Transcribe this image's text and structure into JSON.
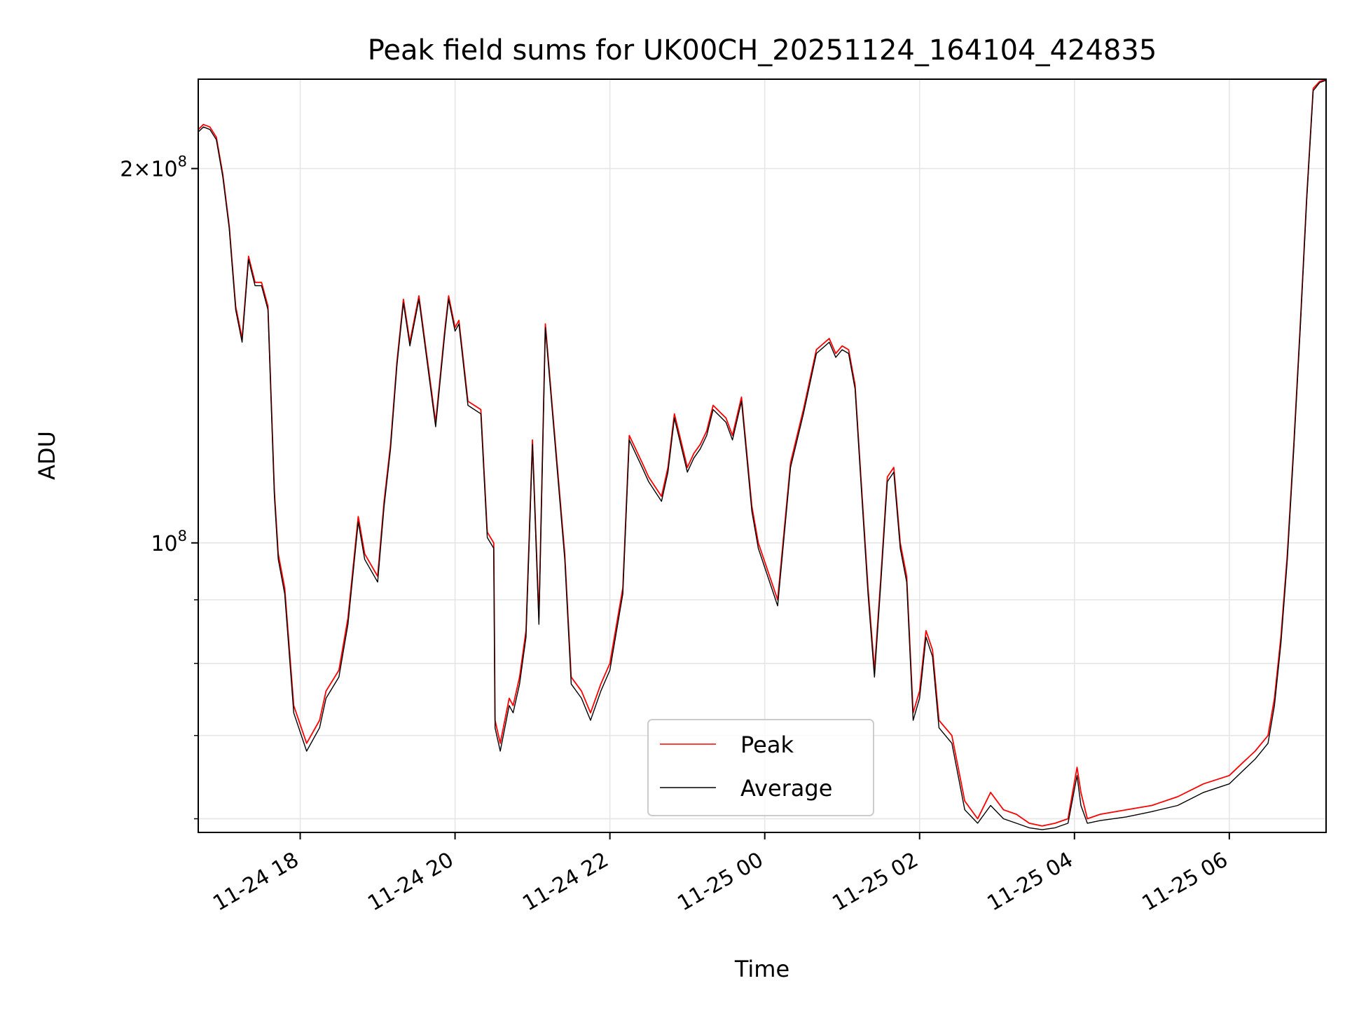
{
  "chart_data": {
    "type": "line",
    "title": "Peak field sums for UK00CH_20251124_164104_424835",
    "xlabel": "Time",
    "ylabel": "ADU",
    "y_scale": "log",
    "x_range": [
      "2025-11-24 16:41",
      "2025-11-25 07:15"
    ],
    "ylim": [
      58500000,
      236000000
    ],
    "grid": true,
    "legend_position": "lower-center",
    "x_ticks": [
      {
        "value": "2025-11-24 18:00",
        "label": "11-24 18"
      },
      {
        "value": "2025-11-24 20:00",
        "label": "11-24 20"
      },
      {
        "value": "2025-11-24 22:00",
        "label": "11-24 22"
      },
      {
        "value": "2025-11-25 00:00",
        "label": "11-25 00"
      },
      {
        "value": "2025-11-25 02:00",
        "label": "11-25 02"
      },
      {
        "value": "2025-11-25 04:00",
        "label": "11-25 04"
      },
      {
        "value": "2025-11-25 06:00",
        "label": "11-25 06"
      }
    ],
    "y_major_ticks": [
      {
        "value": 100000000,
        "label": "10^8"
      },
      {
        "value": 200000000,
        "label": "2×10^8"
      }
    ],
    "y_minor_ticks": [
      60000000,
      70000000,
      80000000,
      90000000
    ],
    "series": [
      {
        "name": "Peak",
        "color": "#ff0000",
        "x": [
          "2025-11-24 16:41",
          "2025-11-24 16:45",
          "2025-11-24 16:50",
          "2025-11-24 16:55",
          "2025-11-24 17:00",
          "2025-11-24 17:05",
          "2025-11-24 17:10",
          "2025-11-24 17:15",
          "2025-11-24 17:20",
          "2025-11-24 17:25",
          "2025-11-24 17:30",
          "2025-11-24 17:35",
          "2025-11-24 17:40",
          "2025-11-24 17:43",
          "2025-11-24 17:48",
          "2025-11-24 17:55",
          "2025-11-24 18:05",
          "2025-11-24 18:15",
          "2025-11-24 18:20",
          "2025-11-24 18:30",
          "2025-11-24 18:37",
          "2025-11-24 18:45",
          "2025-11-24 18:50",
          "2025-11-24 19:00",
          "2025-11-24 19:05",
          "2025-11-24 19:10",
          "2025-11-24 19:15",
          "2025-11-24 19:20",
          "2025-11-24 19:25",
          "2025-11-24 19:32",
          "2025-11-24 19:45",
          "2025-11-24 19:52",
          "2025-11-24 19:55",
          "2025-11-24 20:00",
          "2025-11-24 20:03",
          "2025-11-24 20:10",
          "2025-11-24 20:20",
          "2025-11-24 20:25",
          "2025-11-24 20:30",
          "2025-11-24 20:31",
          "2025-11-24 20:35",
          "2025-11-24 20:42",
          "2025-11-24 20:45",
          "2025-11-24 20:50",
          "2025-11-24 20:55",
          "2025-11-24 21:00",
          "2025-11-24 21:05",
          "2025-11-24 21:10",
          "2025-11-24 21:15",
          "2025-11-24 21:25",
          "2025-11-24 21:30",
          "2025-11-24 21:38",
          "2025-11-24 21:45",
          "2025-11-24 21:53",
          "2025-11-24 22:00",
          "2025-11-24 22:10",
          "2025-11-24 22:15",
          "2025-11-24 22:25",
          "2025-11-24 22:30",
          "2025-11-24 22:40",
          "2025-11-24 22:45",
          "2025-11-24 22:50",
          "2025-11-24 23:00",
          "2025-11-24 23:05",
          "2025-11-24 23:10",
          "2025-11-24 23:15",
          "2025-11-24 23:20",
          "2025-11-24 23:30",
          "2025-11-24 23:35",
          "2025-11-24 23:42",
          "2025-11-24 23:50",
          "2025-11-24 23:55",
          "2025-11-25 00:10",
          "2025-11-25 00:20",
          "2025-11-25 00:30",
          "2025-11-25 00:40",
          "2025-11-25 00:50",
          "2025-11-25 00:55",
          "2025-11-25 01:00",
          "2025-11-25 01:05",
          "2025-11-25 01:10",
          "2025-11-25 01:15",
          "2025-11-25 01:20",
          "2025-11-25 01:25",
          "2025-11-25 01:30",
          "2025-11-25 01:35",
          "2025-11-25 01:40",
          "2025-11-25 01:45",
          "2025-11-25 01:50",
          "2025-11-25 01:55",
          "2025-11-25 02:00",
          "2025-11-25 02:05",
          "2025-11-25 02:10",
          "2025-11-25 02:15",
          "2025-11-25 02:25",
          "2025-11-25 02:35",
          "2025-11-25 02:45",
          "2025-11-25 02:55",
          "2025-11-25 03:05",
          "2025-11-25 03:15",
          "2025-11-25 03:25",
          "2025-11-25 03:35",
          "2025-11-25 03:45",
          "2025-11-25 03:55",
          "2025-11-25 04:02",
          "2025-11-25 04:05",
          "2025-11-25 04:10",
          "2025-11-25 04:20",
          "2025-11-25 04:40",
          "2025-11-25 05:00",
          "2025-11-25 05:20",
          "2025-11-25 05:40",
          "2025-11-25 06:00",
          "2025-11-25 06:10",
          "2025-11-25 06:20",
          "2025-11-25 06:30",
          "2025-11-25 06:35",
          "2025-11-25 06:40",
          "2025-11-25 06:45",
          "2025-11-25 06:50",
          "2025-11-25 06:55",
          "2025-11-25 07:00",
          "2025-11-25 07:05",
          "2025-11-25 07:10",
          "2025-11-25 07:15"
        ],
        "y": [
          215000000,
          217000000,
          216000000,
          212000000,
          198000000,
          180000000,
          155000000,
          146000000,
          170000000,
          162000000,
          162000000,
          155000000,
          110000000,
          98000000,
          92000000,
          74000000,
          69000000,
          72000000,
          76000000,
          79000000,
          87000000,
          105000000,
          98000000,
          94000000,
          108000000,
          120000000,
          140000000,
          157000000,
          145000000,
          158000000,
          125000000,
          148000000,
          158000000,
          149000000,
          151000000,
          130000000,
          128000000,
          102000000,
          100000000,
          72000000,
          69000000,
          75000000,
          74000000,
          78000000,
          85000000,
          121000000,
          87000000,
          150000000,
          130000000,
          98000000,
          78000000,
          76000000,
          73000000,
          77000000,
          80000000,
          92000000,
          122000000,
          116000000,
          113000000,
          109000000,
          115000000,
          127000000,
          115000000,
          118000000,
          120000000,
          123000000,
          129000000,
          126000000,
          122000000,
          131000000,
          107000000,
          100000000,
          90000000,
          116000000,
          128000000,
          143000000,
          146000000,
          142000000,
          144000000,
          143000000,
          134000000,
          111000000,
          92000000,
          79000000,
          94000000,
          113000000,
          115000000,
          100000000,
          94000000,
          73000000,
          76000000,
          85000000,
          82000000,
          72000000,
          70000000,
          62000000,
          60000000,
          63000000,
          61000000,
          60500000,
          59500000,
          59200000,
          59500000,
          60000000,
          66000000,
          63000000,
          60000000,
          60500000,
          61000000,
          61500000,
          62500000,
          64000000,
          65000000,
          66500000,
          68000000,
          70000000,
          75000000,
          84000000,
          98000000,
          120000000,
          150000000,
          190000000,
          232000000,
          235000000,
          236000000
        ]
      },
      {
        "name": "Average",
        "color": "#000000",
        "x": [
          "2025-11-24 16:41",
          "2025-11-24 16:45",
          "2025-11-24 16:50",
          "2025-11-24 16:55",
          "2025-11-24 17:00",
          "2025-11-24 17:05",
          "2025-11-24 17:10",
          "2025-11-24 17:15",
          "2025-11-24 17:20",
          "2025-11-24 17:25",
          "2025-11-24 17:30",
          "2025-11-24 17:35",
          "2025-11-24 17:40",
          "2025-11-24 17:43",
          "2025-11-24 17:48",
          "2025-11-24 17:55",
          "2025-11-24 18:05",
          "2025-11-24 18:15",
          "2025-11-24 18:20",
          "2025-11-24 18:30",
          "2025-11-24 18:37",
          "2025-11-24 18:45",
          "2025-11-24 18:50",
          "2025-11-24 19:00",
          "2025-11-24 19:05",
          "2025-11-24 19:10",
          "2025-11-24 19:15",
          "2025-11-24 19:20",
          "2025-11-24 19:25",
          "2025-11-24 19:32",
          "2025-11-24 19:45",
          "2025-11-24 19:52",
          "2025-11-24 19:55",
          "2025-11-24 20:00",
          "2025-11-24 20:03",
          "2025-11-24 20:10",
          "2025-11-24 20:20",
          "2025-11-24 20:25",
          "2025-11-24 20:30",
          "2025-11-24 20:31",
          "2025-11-24 20:35",
          "2025-11-24 20:42",
          "2025-11-24 20:45",
          "2025-11-24 20:50",
          "2025-11-24 20:55",
          "2025-11-24 21:00",
          "2025-11-24 21:05",
          "2025-11-24 21:10",
          "2025-11-24 21:15",
          "2025-11-24 21:25",
          "2025-11-24 21:30",
          "2025-11-24 21:38",
          "2025-11-24 21:45",
          "2025-11-24 21:53",
          "2025-11-24 22:00",
          "2025-11-24 22:10",
          "2025-11-24 22:15",
          "2025-11-24 22:25",
          "2025-11-24 22:30",
          "2025-11-24 22:40",
          "2025-11-24 22:45",
          "2025-11-24 22:50",
          "2025-11-24 23:00",
          "2025-11-24 23:05",
          "2025-11-24 23:10",
          "2025-11-24 23:15",
          "2025-11-24 23:20",
          "2025-11-24 23:30",
          "2025-11-24 23:35",
          "2025-11-24 23:42",
          "2025-11-24 23:50",
          "2025-11-24 23:55",
          "2025-11-25 00:10",
          "2025-11-25 00:20",
          "2025-11-25 00:30",
          "2025-11-25 00:40",
          "2025-11-25 00:50",
          "2025-11-25 00:55",
          "2025-11-25 01:00",
          "2025-11-25 01:05",
          "2025-11-25 01:10",
          "2025-11-25 01:15",
          "2025-11-25 01:20",
          "2025-11-25 01:25",
          "2025-11-25 01:30",
          "2025-11-25 01:35",
          "2025-11-25 01:40",
          "2025-11-25 01:45",
          "2025-11-25 01:50",
          "2025-11-25 01:55",
          "2025-11-25 02:00",
          "2025-11-25 02:05",
          "2025-11-25 02:10",
          "2025-11-25 02:15",
          "2025-11-25 02:25",
          "2025-11-25 02:35",
          "2025-11-25 02:45",
          "2025-11-25 02:55",
          "2025-11-25 03:05",
          "2025-11-25 03:15",
          "2025-11-25 03:25",
          "2025-11-25 03:35",
          "2025-11-25 03:45",
          "2025-11-25 03:55",
          "2025-11-25 04:02",
          "2025-11-25 04:05",
          "2025-11-25 04:10",
          "2025-11-25 04:20",
          "2025-11-25 04:40",
          "2025-11-25 05:00",
          "2025-11-25 05:20",
          "2025-11-25 05:40",
          "2025-11-25 06:00",
          "2025-11-25 06:10",
          "2025-11-25 06:20",
          "2025-11-25 06:30",
          "2025-11-25 06:35",
          "2025-11-25 06:40",
          "2025-11-25 06:45",
          "2025-11-25 06:50",
          "2025-11-25 06:55",
          "2025-11-25 07:00",
          "2025-11-25 07:05",
          "2025-11-25 07:10",
          "2025-11-25 07:15"
        ],
        "y": [
          214000000,
          216000000,
          215000000,
          211000000,
          197000000,
          179000000,
          154000000,
          145000000,
          169000000,
          161000000,
          161000000,
          154000000,
          109000000,
          97000000,
          91000000,
          73000000,
          68000000,
          71000000,
          75000000,
          78000000,
          86000000,
          104000000,
          97000000,
          93000000,
          107000000,
          119000000,
          139000000,
          156000000,
          144000000,
          157000000,
          124000000,
          147000000,
          157000000,
          148000000,
          150000000,
          129000000,
          127000000,
          101000000,
          99000000,
          71000000,
          68000000,
          74000000,
          73000000,
          77000000,
          84000000,
          120000000,
          86000000,
          149000000,
          129000000,
          97000000,
          77000000,
          75000000,
          72000000,
          76000000,
          79000000,
          91000000,
          121000000,
          115000000,
          112000000,
          108000000,
          114000000,
          126000000,
          114000000,
          117000000,
          119000000,
          122000000,
          128000000,
          125000000,
          121000000,
          130000000,
          106000000,
          99000000,
          89000000,
          115000000,
          127000000,
          142000000,
          145000000,
          141000000,
          143000000,
          142000000,
          133000000,
          110000000,
          91000000,
          78000000,
          93000000,
          112000000,
          114000000,
          99000000,
          93000000,
          72000000,
          75000000,
          84000000,
          81000000,
          71000000,
          69000000,
          61000000,
          59500000,
          61500000,
          60000000,
          59500000,
          59000000,
          58800000,
          59000000,
          59500000,
          65000000,
          61500000,
          59500000,
          59800000,
          60200000,
          60800000,
          61500000,
          63000000,
          64000000,
          65500000,
          67000000,
          69000000,
          74000000,
          83000000,
          97000000,
          119000000,
          149000000,
          189000000,
          231000000,
          234500000,
          235500000
        ]
      }
    ]
  }
}
